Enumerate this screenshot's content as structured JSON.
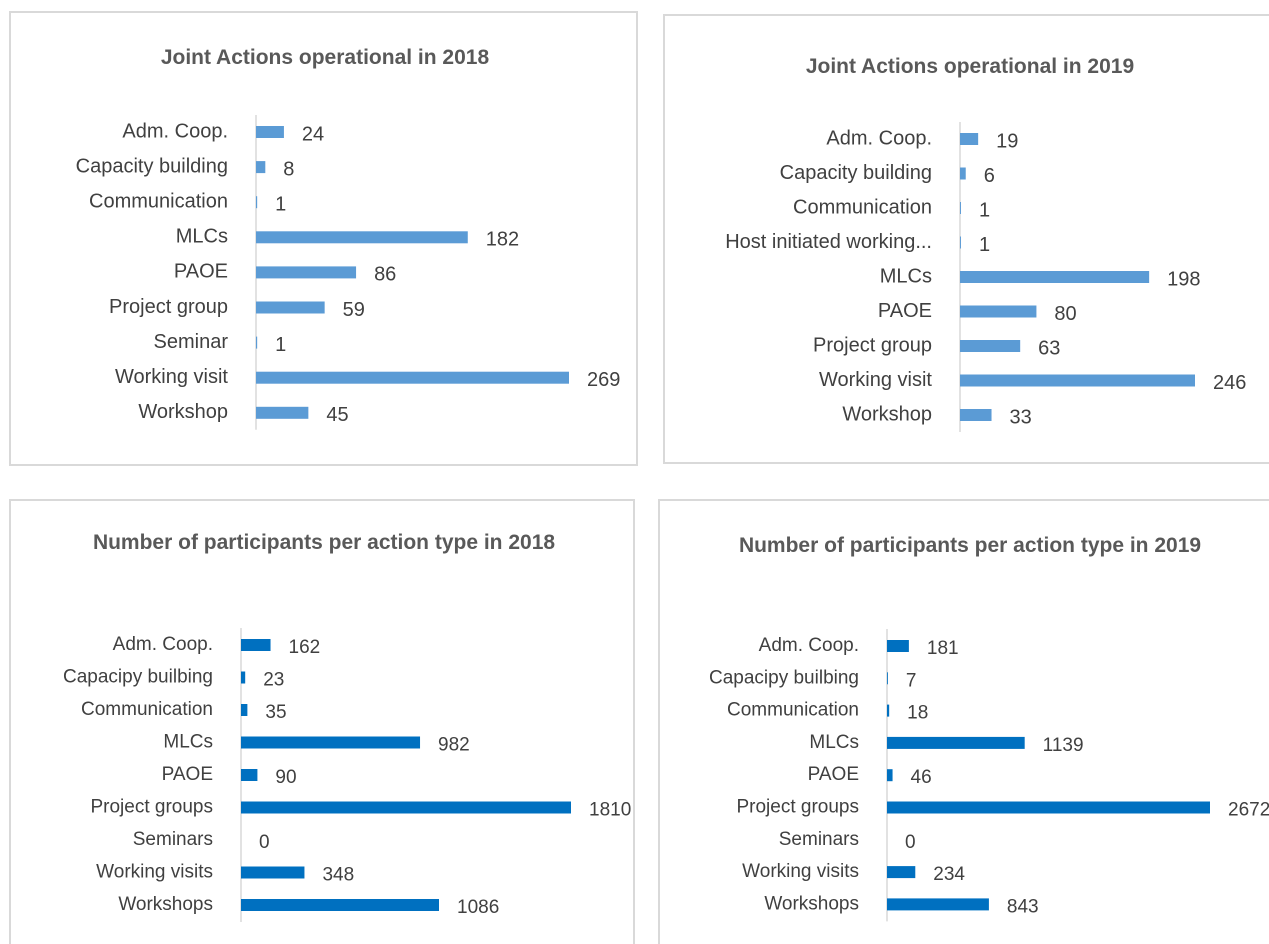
{
  "chart_data": [
    {
      "type": "bar",
      "orientation": "horizontal",
      "title": "Joint Actions operational  in 2018",
      "color": "#5b9bd5",
      "categories": [
        "Adm. Coop.",
        "Capacity building",
        "Communication",
        "MLCs",
        "PAOE",
        "Project group",
        "Seminar",
        "Working visit",
        "Workshop"
      ],
      "values": [
        24,
        8,
        1,
        182,
        86,
        59,
        1,
        269,
        45
      ]
    },
    {
      "type": "bar",
      "orientation": "horizontal",
      "title": "Joint Actions operational  in 2019",
      "color": "#5b9bd5",
      "categories": [
        "Adm. Coop.",
        "Capacity building",
        "Communication",
        "Host initiated working...",
        "MLCs",
        "PAOE",
        "Project group",
        "Working visit",
        "Workshop"
      ],
      "values": [
        19,
        6,
        1,
        1,
        198,
        80,
        63,
        246,
        33
      ]
    },
    {
      "type": "bar",
      "orientation": "horizontal",
      "title": "Number of participants  per action type in 2018",
      "color": "#0070c0",
      "categories": [
        "Adm. Coop.",
        "Capacipy builbing",
        "Communication",
        "MLCs",
        "PAOE",
        "Project groups",
        "Seminars",
        "Working visits",
        "Workshops"
      ],
      "values": [
        162,
        23,
        35,
        982,
        90,
        1810,
        0,
        348,
        1086
      ]
    },
    {
      "type": "bar",
      "orientation": "horizontal",
      "title": "Number of participants  per action type in 2019",
      "color": "#0070c0",
      "categories": [
        "Adm. Coop.",
        "Capacipy builbing",
        "Communication",
        "MLCs",
        "PAOE",
        "Project groups",
        "Seminars",
        "Working visits",
        "Workshops"
      ],
      "values": [
        181,
        7,
        18,
        1139,
        46,
        2672,
        0,
        234,
        843
      ]
    }
  ]
}
